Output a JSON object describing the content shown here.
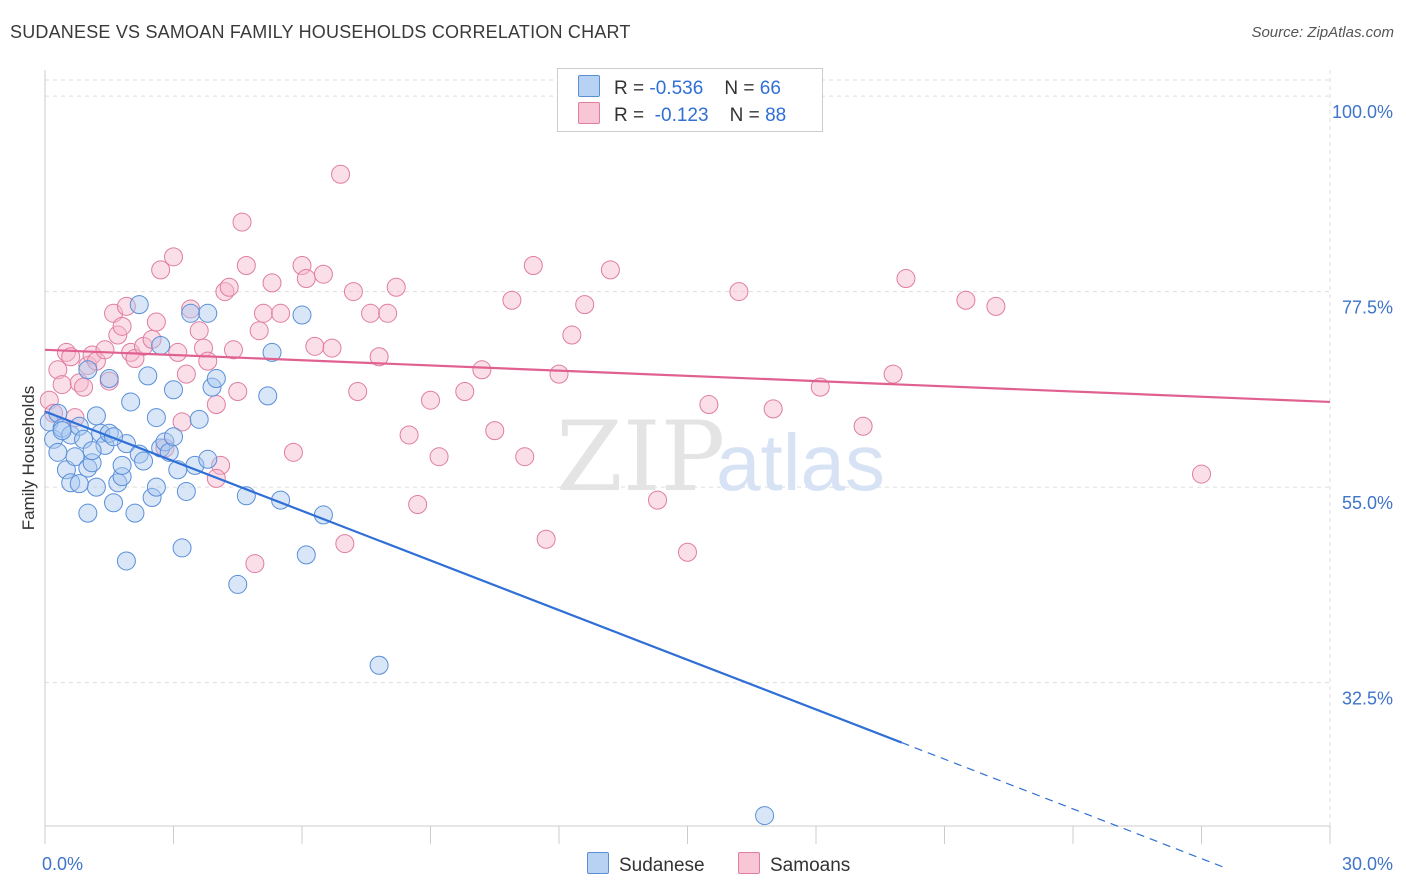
{
  "title": "SUDANESE VS SAMOAN FAMILY HOUSEHOLDS CORRELATION CHART",
  "source": "Source: ZipAtlas.com",
  "watermark": {
    "zip": "ZIP",
    "atlas": "atlas"
  },
  "legend": {
    "rows": [
      {
        "r_label": "R =",
        "r_value": "-0.536",
        "n_label": "N =",
        "n_value": "66"
      },
      {
        "r_label": "R =",
        "r_value": "-0.123",
        "n_label": "N =",
        "n_value": "88"
      }
    ]
  },
  "colors": {
    "sudanese_fill": "#a9c8f0",
    "sudanese_stroke": "#5a8fd8",
    "sudanese_line": "#2f6fd6",
    "samoan_fill": "#f6b8cc",
    "samoan_stroke": "#e07da0",
    "samoan_line": "#e06090",
    "tick_label": "#3f74c9"
  },
  "chart_data": {
    "type": "scatter",
    "ylabel": "Family Households",
    "xlim": [
      0,
      30
    ],
    "ylim": [
      16,
      103
    ],
    "x_tick_labels": [
      "0.0%",
      "30.0%"
    ],
    "y_ticks": [
      32.5,
      55.0,
      77.5,
      100.0
    ],
    "y_tick_labels": [
      "32.5%",
      "55.0%",
      "77.5%",
      "100.0%"
    ],
    "grid": true,
    "series": [
      {
        "name": "Sudanese",
        "trend": {
          "x0": 0.0,
          "y0": 63.7,
          "x1": 20.0,
          "y1": 25.6,
          "dash_to_x": 27.6,
          "dash_to_y": 11.1
        },
        "points": [
          [
            0.1,
            62.5
          ],
          [
            0.2,
            60.5
          ],
          [
            0.3,
            63.5
          ],
          [
            0.4,
            61.8
          ],
          [
            0.5,
            57.0
          ],
          [
            0.6,
            61.0
          ],
          [
            0.6,
            55.5
          ],
          [
            0.7,
            58.5
          ],
          [
            0.8,
            62.0
          ],
          [
            0.9,
            60.5
          ],
          [
            1.0,
            57.2
          ],
          [
            1.1,
            57.8
          ],
          [
            1.0,
            68.5
          ],
          [
            1.2,
            55.0
          ],
          [
            1.2,
            63.2
          ],
          [
            1.3,
            61.2
          ],
          [
            1.4,
            59.8
          ],
          [
            1.5,
            61.2
          ],
          [
            1.5,
            67.5
          ],
          [
            1.6,
            53.2
          ],
          [
            1.7,
            55.5
          ],
          [
            1.8,
            56.2
          ],
          [
            1.8,
            57.5
          ],
          [
            1.9,
            60.0
          ],
          [
            2.0,
            64.8
          ],
          [
            2.1,
            52.0
          ],
          [
            2.2,
            58.8
          ],
          [
            2.3,
            58.0
          ],
          [
            2.4,
            67.8
          ],
          [
            2.5,
            53.8
          ],
          [
            2.6,
            55.0
          ],
          [
            2.6,
            63.0
          ],
          [
            2.7,
            59.5
          ],
          [
            2.8,
            60.2
          ],
          [
            2.9,
            59.0
          ],
          [
            3.0,
            66.2
          ],
          [
            3.1,
            57.0
          ],
          [
            3.2,
            48.0
          ],
          [
            3.3,
            54.5
          ],
          [
            3.5,
            57.5
          ],
          [
            3.6,
            62.8
          ],
          [
            3.8,
            58.2
          ],
          [
            3.9,
            66.5
          ],
          [
            4.0,
            67.5
          ],
          [
            2.7,
            71.3
          ],
          [
            3.4,
            75.0
          ],
          [
            3.0,
            60.8
          ],
          [
            3.8,
            75.0
          ],
          [
            1.9,
            46.5
          ],
          [
            1.0,
            52.0
          ],
          [
            4.5,
            43.8
          ],
          [
            4.7,
            54.0
          ],
          [
            5.2,
            65.5
          ],
          [
            5.3,
            70.5
          ],
          [
            5.5,
            53.5
          ],
          [
            6.0,
            74.8
          ],
          [
            6.1,
            47.2
          ],
          [
            6.5,
            51.8
          ],
          [
            7.8,
            34.5
          ],
          [
            16.8,
            17.2
          ],
          [
            0.3,
            59.0
          ],
          [
            0.4,
            61.5
          ],
          [
            1.1,
            59.2
          ],
          [
            2.2,
            76.0
          ],
          [
            1.6,
            60.8
          ],
          [
            0.8,
            55.4
          ]
        ]
      },
      {
        "name": "Samoans",
        "trend": {
          "x0": 0.0,
          "y0": 70.8,
          "x1": 30.0,
          "y1": 64.8
        },
        "points": [
          [
            0.1,
            65.0
          ],
          [
            0.2,
            63.5
          ],
          [
            0.3,
            68.5
          ],
          [
            0.4,
            66.8
          ],
          [
            0.5,
            70.5
          ],
          [
            0.6,
            70.0
          ],
          [
            0.7,
            63.0
          ],
          [
            0.8,
            67.0
          ],
          [
            0.9,
            66.5
          ],
          [
            1.0,
            69.0
          ],
          [
            1.1,
            70.2
          ],
          [
            1.2,
            69.5
          ],
          [
            1.4,
            70.8
          ],
          [
            1.5,
            67.2
          ],
          [
            1.6,
            75.0
          ],
          [
            1.7,
            72.5
          ],
          [
            1.8,
            73.5
          ],
          [
            1.9,
            75.8
          ],
          [
            2.0,
            70.5
          ],
          [
            2.1,
            69.8
          ],
          [
            2.3,
            71.2
          ],
          [
            2.5,
            72.0
          ],
          [
            2.6,
            74.0
          ],
          [
            2.7,
            80.0
          ],
          [
            2.8,
            59.5
          ],
          [
            3.0,
            81.5
          ],
          [
            3.1,
            70.5
          ],
          [
            3.2,
            62.5
          ],
          [
            3.3,
            68.0
          ],
          [
            3.4,
            75.5
          ],
          [
            3.6,
            73.0
          ],
          [
            3.7,
            71.0
          ],
          [
            3.8,
            69.5
          ],
          [
            4.0,
            64.5
          ],
          [
            4.1,
            57.5
          ],
          [
            4.2,
            77.5
          ],
          [
            4.3,
            78.0
          ],
          [
            4.4,
            70.8
          ],
          [
            4.5,
            66.0
          ],
          [
            4.6,
            85.5
          ],
          [
            4.7,
            80.5
          ],
          [
            4.9,
            46.2
          ],
          [
            5.0,
            73.0
          ],
          [
            5.1,
            75.0
          ],
          [
            5.3,
            78.5
          ],
          [
            5.5,
            75.0
          ],
          [
            5.8,
            59.0
          ],
          [
            6.0,
            80.5
          ],
          [
            6.1,
            79.0
          ],
          [
            6.3,
            71.2
          ],
          [
            6.5,
            79.5
          ],
          [
            6.7,
            71.0
          ],
          [
            6.9,
            91.0
          ],
          [
            7.0,
            48.5
          ],
          [
            7.2,
            77.5
          ],
          [
            7.3,
            66.0
          ],
          [
            7.6,
            75.0
          ],
          [
            7.8,
            70.0
          ],
          [
            8.0,
            75.0
          ],
          [
            8.2,
            78.0
          ],
          [
            8.5,
            61.0
          ],
          [
            8.7,
            53.0
          ],
          [
            9.0,
            65.0
          ],
          [
            9.2,
            58.5
          ],
          [
            9.8,
            66.0
          ],
          [
            10.2,
            68.5
          ],
          [
            10.5,
            61.5
          ],
          [
            10.9,
            76.5
          ],
          [
            11.2,
            58.5
          ],
          [
            11.4,
            80.5
          ],
          [
            11.7,
            49.0
          ],
          [
            12.0,
            68.0
          ],
          [
            12.3,
            72.5
          ],
          [
            12.6,
            76.0
          ],
          [
            13.2,
            80.0
          ],
          [
            14.3,
            53.5
          ],
          [
            15.0,
            47.5
          ],
          [
            15.5,
            64.5
          ],
          [
            16.2,
            77.5
          ],
          [
            17.0,
            64.0
          ],
          [
            18.1,
            66.5
          ],
          [
            19.1,
            62.0
          ],
          [
            19.8,
            68.0
          ],
          [
            20.1,
            79.0
          ],
          [
            21.5,
            76.5
          ],
          [
            22.2,
            75.8
          ],
          [
            27.0,
            56.5
          ],
          [
            4.0,
            56.0
          ]
        ]
      }
    ]
  },
  "bottom_legend": {
    "sudanese": "Sudanese",
    "samoans": "Samoans"
  }
}
